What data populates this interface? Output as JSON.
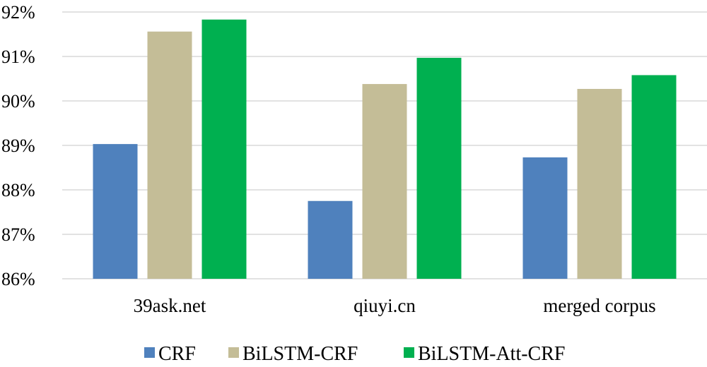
{
  "chart_data": {
    "type": "bar",
    "title": "",
    "xlabel": "",
    "ylabel": "",
    "categories": [
      "39ask.net",
      "qiuyi.cn",
      "merged corpus"
    ],
    "series": [
      {
        "name": "CRF",
        "color": "#4f81bd",
        "values": [
          89.03,
          87.75,
          88.73
        ]
      },
      {
        "name": "BiLSTM-CRF",
        "color": "#c4bd97",
        "values": [
          91.56,
          90.38,
          90.27
        ]
      },
      {
        "name": "BiLSTM-Att-CRF",
        "color": "#00b050",
        "values": [
          91.83,
          90.97,
          90.58
        ]
      }
    ],
    "ylim": [
      86,
      92
    ],
    "yticks": [
      86,
      87,
      88,
      89,
      90,
      91,
      92
    ],
    "ytick_labels": [
      "86%",
      "87%",
      "88%",
      "89%",
      "90%",
      "91%",
      "92%"
    ],
    "grid": true,
    "legend_position": "bottom"
  }
}
